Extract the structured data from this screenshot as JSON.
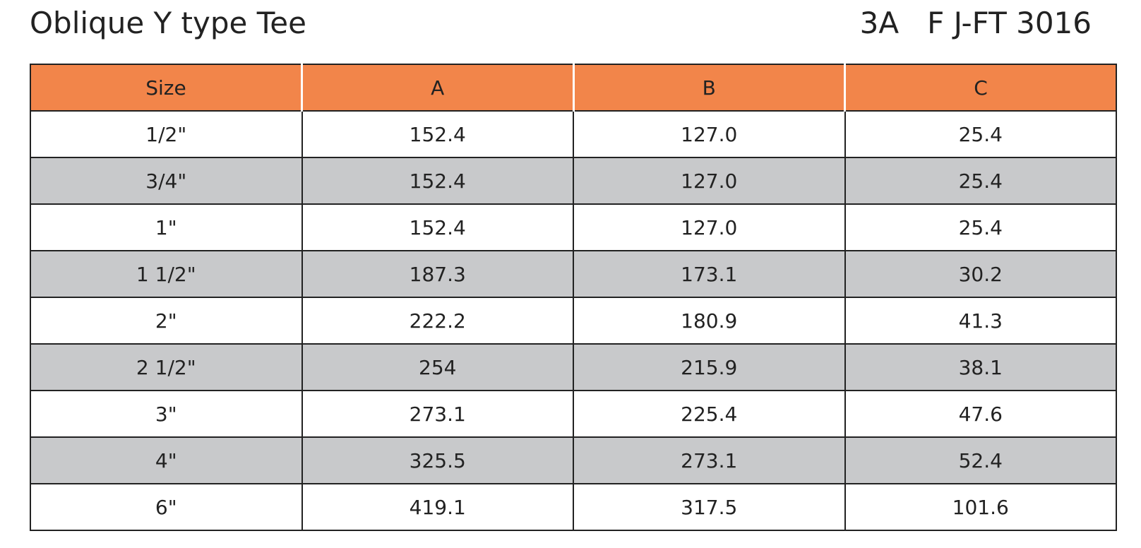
{
  "header": {
    "title": "Oblique Y type Tee",
    "code": "3A   F J-FT 3016"
  },
  "table": {
    "columns": [
      "Size",
      "A",
      "B",
      "C"
    ],
    "rows": [
      [
        "1/2\"",
        "152.4",
        "127.0",
        "25.4"
      ],
      [
        "3/4\"",
        "152.4",
        "127.0",
        "25.4"
      ],
      [
        "1\"",
        "152.4",
        "127.0",
        "25.4"
      ],
      [
        "1 1/2\"",
        "187.3",
        "173.1",
        "30.2"
      ],
      [
        "2\"",
        "222.2",
        "180.9",
        "41.3"
      ],
      [
        "2 1/2\"",
        "254",
        "215.9",
        "38.1"
      ],
      [
        "3\"",
        "273.1",
        "225.4",
        "47.6"
      ],
      [
        "4\"",
        "325.5",
        "273.1",
        "52.4"
      ],
      [
        "6\"",
        "419.1",
        "317.5",
        "101.6"
      ]
    ]
  }
}
